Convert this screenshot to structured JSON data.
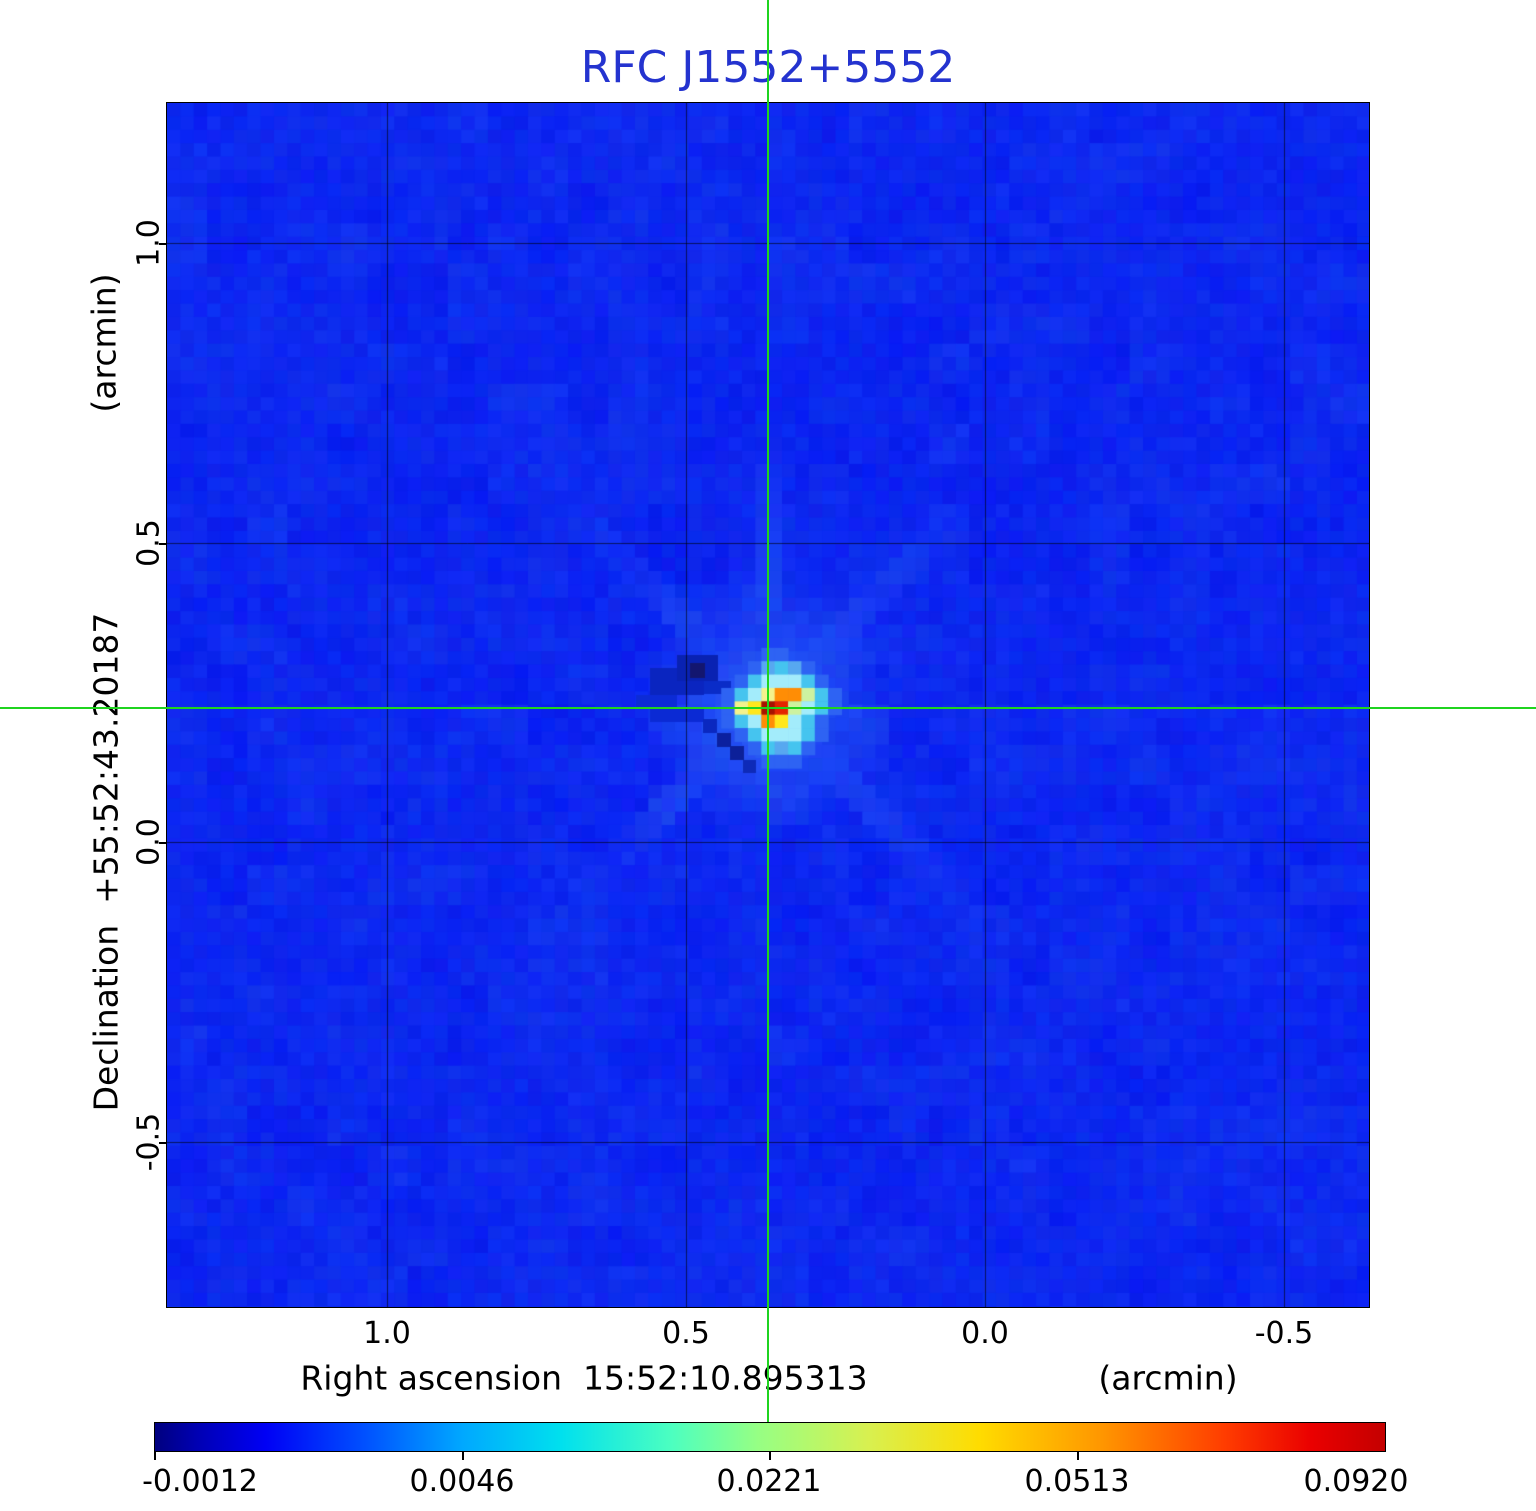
{
  "title": {
    "text": "RFC J1552+5552",
    "color": "#2433cf"
  },
  "chart_data": {
    "type": "heatmap",
    "title": "RFC J1552+5552",
    "x_axis": {
      "label": "Right ascension  15:52:10.895313",
      "unit": "(arcmin)",
      "tick_labels": [
        "1.0",
        "0.5",
        "0.0",
        "-0.5"
      ]
    },
    "y_axis": {
      "label": "Declination  +55:52:43.20187",
      "unit": "(arcmin)",
      "tick_labels": [
        "1.0",
        "0.5",
        "0.0",
        "-0.5"
      ]
    },
    "colorbar": {
      "colormap": "jet",
      "tick_labels": [
        "-0.0012",
        "0.0046",
        "0.0221",
        "0.0513",
        "0.0920"
      ]
    },
    "crosshair": {
      "color": "#1fd41f",
      "marks_source": true
    },
    "background_level_color": "#0d28f0",
    "grid": true,
    "source": {
      "name": "RFC J1552+5552",
      "peak_label": "0.0920",
      "palette": {
        "L": "#2e63f3",
        "M": "#57a8f0",
        "c1": "#45c4ef",
        "c2": "#a3ecfb",
        "g": "#cdf2a0",
        "y": "#f4f28c",
        "Y": "#ffe71c",
        "O": "#ff8d05",
        "R": "#e32400",
        "D": "#a61300"
      },
      "matrix": [
        [
          "B",
          "B",
          "B",
          "L",
          "L",
          "B",
          "B",
          "B",
          "B"
        ],
        [
          "B",
          "B",
          "L",
          "M",
          "c1",
          "M",
          "L",
          "B",
          "B"
        ],
        [
          "B",
          "L",
          "c1",
          "c2",
          "c2",
          "c2",
          "c1",
          "L",
          "B"
        ],
        [
          "L",
          "c1",
          "c2",
          "y",
          "O",
          "O",
          "g",
          "c1",
          "L"
        ],
        [
          "L",
          "y",
          "Y",
          "D",
          "R",
          "g",
          "c2",
          "c1",
          "L"
        ],
        [
          "L",
          "c1",
          "c2",
          "O",
          "Y",
          "c2",
          "c1",
          "L",
          "B"
        ],
        [
          "B",
          "L",
          "c1",
          "c2",
          "c2",
          "c2",
          "c1",
          "L",
          "B"
        ],
        [
          "B",
          "B",
          "L",
          "c1",
          "M",
          "c1",
          "L",
          "B",
          "B"
        ],
        [
          "B",
          "B",
          "B",
          "L",
          "L",
          "L",
          "B",
          "B",
          "B"
        ]
      ]
    }
  }
}
